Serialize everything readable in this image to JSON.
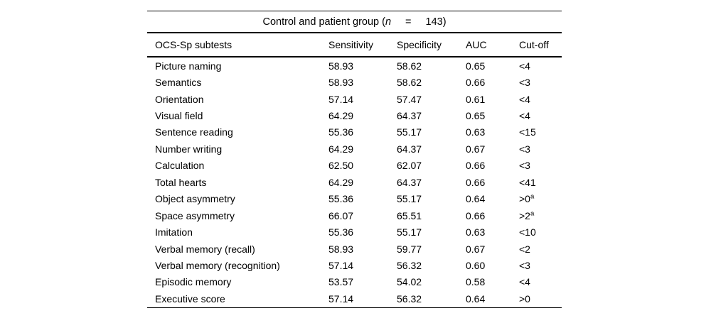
{
  "colors": {
    "background": "#ffffff",
    "text": "#000000",
    "rule": "#000000"
  },
  "table": {
    "title": {
      "prefix": "Control and patient group (",
      "n_var": "n",
      "equals": "=",
      "value_suffix": "143)"
    },
    "columns": [
      "OCS-Sp subtests",
      "Sensitivity",
      "Specificity",
      "AUC",
      "Cut-off"
    ],
    "rows": [
      {
        "label": "Picture naming",
        "sensitivity": "58.93",
        "specificity": "58.62",
        "auc": "0.65",
        "cutoff": "<4",
        "cutoff_sup": ""
      },
      {
        "label": "Semantics",
        "sensitivity": "58.93",
        "specificity": "58.62",
        "auc": "0.66",
        "cutoff": "<3",
        "cutoff_sup": ""
      },
      {
        "label": "Orientation",
        "sensitivity": "57.14",
        "specificity": "57.47",
        "auc": "0.61",
        "cutoff": "<4",
        "cutoff_sup": ""
      },
      {
        "label": "Visual field",
        "sensitivity": "64.29",
        "specificity": "64.37",
        "auc": "0.65",
        "cutoff": "<4",
        "cutoff_sup": ""
      },
      {
        "label": "Sentence reading",
        "sensitivity": "55.36",
        "specificity": "55.17",
        "auc": "0.63",
        "cutoff": "<15",
        "cutoff_sup": ""
      },
      {
        "label": "Number writing",
        "sensitivity": "64.29",
        "specificity": "64.37",
        "auc": "0.67",
        "cutoff": "<3",
        "cutoff_sup": ""
      },
      {
        "label": "Calculation",
        "sensitivity": "62.50",
        "specificity": "62.07",
        "auc": "0.66",
        "cutoff": "<3",
        "cutoff_sup": ""
      },
      {
        "label": "Total hearts",
        "sensitivity": "64.29",
        "specificity": "64.37",
        "auc": "0.66",
        "cutoff": "<41",
        "cutoff_sup": ""
      },
      {
        "label": "Object asymmetry",
        "sensitivity": "55.36",
        "specificity": "55.17",
        "auc": "0.64",
        "cutoff": ">0",
        "cutoff_sup": "a"
      },
      {
        "label": "Space asymmetry",
        "sensitivity": "66.07",
        "specificity": "65.51",
        "auc": "0.66",
        "cutoff": ">2",
        "cutoff_sup": "a"
      },
      {
        "label": "Imitation",
        "sensitivity": "55.36",
        "specificity": "55.17",
        "auc": "0.63",
        "cutoff": "<10",
        "cutoff_sup": ""
      },
      {
        "label": "Verbal memory (recall)",
        "sensitivity": "58.93",
        "specificity": "59.77",
        "auc": "0.67",
        "cutoff": "<2",
        "cutoff_sup": ""
      },
      {
        "label": "Verbal memory (recognition)",
        "sensitivity": "57.14",
        "specificity": "56.32",
        "auc": "0.60",
        "cutoff": "<3",
        "cutoff_sup": ""
      },
      {
        "label": "Episodic memory",
        "sensitivity": "53.57",
        "specificity": "54.02",
        "auc": "0.58",
        "cutoff": "<4",
        "cutoff_sup": ""
      },
      {
        "label": "Executive score",
        "sensitivity": "57.14",
        "specificity": "56.32",
        "auc": "0.64",
        "cutoff": ">0",
        "cutoff_sup": ""
      }
    ]
  }
}
